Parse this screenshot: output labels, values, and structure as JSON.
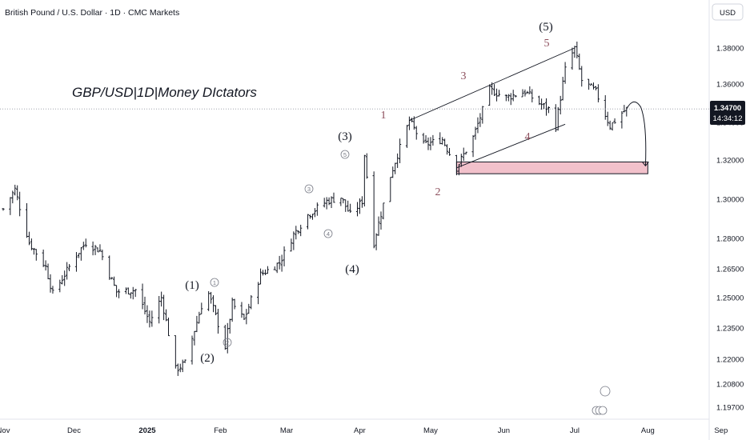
{
  "header": {
    "symbol_title": "British Pound / U.S. Dollar · 1D · CMC Markets",
    "currency_button": "USD"
  },
  "annotation": {
    "title": "GBP/USD|1D|Money DIctators"
  },
  "price_tag": {
    "price": "1.34700",
    "countdown": "14:34:12"
  },
  "colors": {
    "bar": "#131722",
    "price_line": "#9598a1",
    "price_tag_bg": "#131722",
    "zone_fill": "#f2c1cb",
    "wave_sub": "#8d4f5d",
    "circle": "#787b86"
  },
  "wave_labels": {
    "major": [
      "(1)",
      "(2)",
      "(3)",
      "(4)",
      "(5)"
    ],
    "minor": [
      "1",
      "2",
      "3",
      "4",
      "5"
    ],
    "circled": [
      "1",
      "2",
      "3",
      "4",
      "5"
    ]
  },
  "chart_data": {
    "type": "ohlc",
    "title": "British Pound / U.S. Dollar · 1D · CMC Markets",
    "y_ticks": [
      1.38,
      1.36,
      1.34,
      1.32,
      1.3,
      1.28,
      1.265,
      1.25,
      1.235,
      1.22,
      1.208,
      1.197
    ],
    "y_tick_labels": [
      "1.38000",
      "1.36000",
      "1.34000",
      "1.32000",
      "1.30000",
      "1.28000",
      "1.26500",
      "1.25000",
      "1.23500",
      "1.22000",
      "1.20800",
      "1.19700"
    ],
    "x_labels": [
      "Nov",
      "Dec",
      "2025",
      "Feb",
      "Mar",
      "Apr",
      "May",
      "Jun",
      "Jul",
      "Aug",
      "Sep"
    ],
    "current_price": 1.347,
    "close_path": [
      [
        "2024-11-01",
        1.295
      ],
      [
        "2024-11-06",
        1.305
      ],
      [
        "2024-11-12",
        1.278
      ],
      [
        "2024-11-19",
        1.266
      ],
      [
        "2024-11-22",
        1.252
      ],
      [
        "2024-12-02",
        1.272
      ],
      [
        "2024-12-06",
        1.278
      ],
      [
        "2024-12-12",
        1.274
      ],
      [
        "2024-12-19",
        1.253
      ],
      [
        "2024-12-27",
        1.254
      ],
      [
        "2025-01-02",
        1.238
      ],
      [
        "2025-01-07",
        1.25
      ],
      [
        "2025-01-13",
        1.215
      ],
      [
        "2025-01-17",
        1.218
      ],
      [
        "2025-01-24",
        1.246
      ],
      [
        "2025-01-27",
        1.252
      ],
      [
        "2025-02-03",
        1.226
      ],
      [
        "2025-02-06",
        1.247
      ],
      [
        "2025-02-11",
        1.239
      ],
      [
        "2025-02-18",
        1.262
      ],
      [
        "2025-02-26",
        1.268
      ],
      [
        "2025-03-04",
        1.282
      ],
      [
        "2025-03-10",
        1.292
      ],
      [
        "2025-03-18",
        1.299
      ],
      [
        "2025-03-24",
        1.301
      ],
      [
        "2025-03-28",
        1.292
      ],
      [
        "2025-04-02",
        1.299
      ],
      [
        "2025-04-03",
        1.323
      ],
      [
        "2025-04-07",
        1.278
      ],
      [
        "2025-04-14",
        1.312
      ],
      [
        "2025-04-22",
        1.341
      ],
      [
        "2025-04-28",
        1.328
      ],
      [
        "2025-05-06",
        1.331
      ],
      [
        "2025-05-12",
        1.316
      ],
      [
        "2025-05-19",
        1.332
      ],
      [
        "2025-05-26",
        1.357
      ],
      [
        "2025-06-02",
        1.353
      ],
      [
        "2025-06-10",
        1.356
      ],
      [
        "2025-06-16",
        1.35
      ],
      [
        "2025-06-20",
        1.347
      ],
      [
        "2025-06-23",
        1.338
      ],
      [
        "2025-06-27",
        1.368
      ],
      [
        "2025-07-01",
        1.38
      ],
      [
        "2025-07-04",
        1.362
      ],
      [
        "2025-07-10",
        1.356
      ],
      [
        "2025-07-16",
        1.338
      ],
      [
        "2025-07-21",
        1.345
      ],
      [
        "2025-07-23",
        1.347
      ]
    ],
    "target_zone": {
      "x_start": "2025-05-12",
      "x_end": "2025-08-01",
      "y_low": 1.313,
      "y_high": 1.319
    },
    "projection": [
      [
        "2025-07-23",
        1.347
      ],
      [
        "2025-07-29",
        1.348
      ],
      [
        "2025-07-31",
        1.317
      ]
    ],
    "channel_lines": [
      [
        [
          "2025-04-22",
          1.341
        ],
        [
          "2025-07-01",
          1.38
        ]
      ],
      [
        [
          "2025-05-12",
          1.316
        ],
        [
          "2025-06-27",
          1.339
        ]
      ]
    ]
  }
}
